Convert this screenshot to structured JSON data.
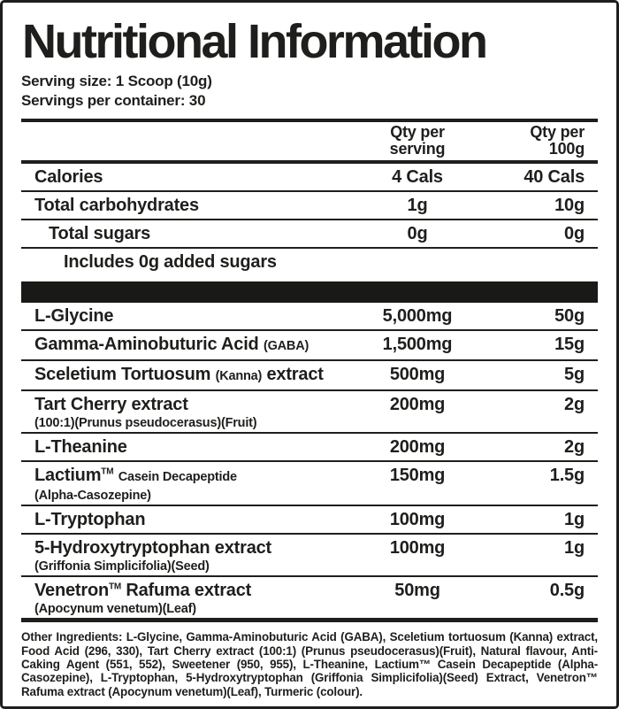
{
  "title": "Nutritional Information",
  "serving": {
    "size_label": "Serving size: 1 Scoop (10g)",
    "per_container_label": "Servings per container: 30"
  },
  "columns": {
    "serving_line1": "Qty per",
    "serving_line2": "serving",
    "per100_line1": "Qty per",
    "per100_line2": "100g"
  },
  "macro_rows": [
    {
      "name": "Calories",
      "serving": "4 Cals",
      "per100": "40 Cals",
      "indent": 0
    },
    {
      "name": "Total carbohydrates",
      "serving": "1g",
      "per100": "10g",
      "indent": 0
    },
    {
      "name": "Total sugars",
      "serving": "0g",
      "per100": "0g",
      "indent": 1
    },
    {
      "name": "Includes 0g added sugars",
      "serving": "",
      "per100": "",
      "indent": 2
    }
  ],
  "ingredient_rows": [
    {
      "name": "L-Glycine",
      "serving": "5,000mg",
      "per100": "50g"
    },
    {
      "name": "Gamma-Aminobuturic Acid",
      "small": "(GABA)",
      "serving": "1,500mg",
      "per100": "15g"
    },
    {
      "name": "Sceletium Tortuosum",
      "small": "(Kanna)",
      "after": "extract",
      "serving": "500mg",
      "per100": "5g"
    },
    {
      "name": "Tart Cherry extract",
      "subtitle": "(100:1)(Prunus pseudocerasus)(Fruit)",
      "serving": "200mg",
      "per100": "2g"
    },
    {
      "name": "L-Theanine",
      "serving": "200mg",
      "per100": "2g"
    },
    {
      "name": "Lactium",
      "tm": "TM",
      "small": "Casein Decapeptide",
      "subtitle": "(Alpha-Casozepine)",
      "serving": "150mg",
      "per100": "1.5g"
    },
    {
      "name": "L-Tryptophan",
      "serving": "100mg",
      "per100": "1g"
    },
    {
      "name": "5-Hydroxytryptophan extract",
      "subtitle": "(Griffonia Simplicifolia)(Seed)",
      "serving": "100mg",
      "per100": "1g"
    },
    {
      "name": "Venetron",
      "tm": "TM",
      "after": "Rafuma extract",
      "subtitle": "(Apocynum venetum)(Leaf)",
      "serving": "50mg",
      "per100": "0.5g"
    }
  ],
  "other_ingredients": {
    "label": "Other Ingredients:",
    "text": " L-Glycine, Gamma-Aminobuturic Acid (GABA), Sceletium tortuosum (Kanna) extract, Food Acid (296, 330), Tart Cherry extract (100:1) (Prunus pseudocerasus)(Fruit), Natural flavour, Anti-Caking Agent (551, 552), Sweetener (950, 955), L-Theanine, Lactium™ Casein Decapeptide (Alpha-Casozepine), L-Tryptophan, 5-Hydroxytryptophan (Griffonia Simplicifolia)(Seed) Extract, Venetron™ Rafuma extract (Apocynum venetum)(Leaf), Turmeric (colour)."
  },
  "colors": {
    "ink": "#1e1e1c",
    "bar": "#191917",
    "background": "#ffffff"
  }
}
